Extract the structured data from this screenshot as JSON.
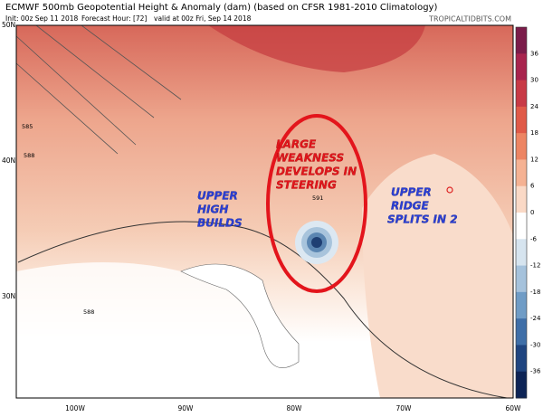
{
  "header": {
    "title": "ECMWF 500mb Geopotential Height & Anomaly (dam) (based on CFSR 1981-2010 Climatology)",
    "init": "Init: 00z Sep 11 2018",
    "forecast_hour": "Forecast Hour: [72]",
    "valid": "valid at 00z Fri, Sep 14 2018",
    "site": "TROPICALTIDBITS.COM"
  },
  "map": {
    "lat_labels": [
      "50N",
      "40N",
      "30N"
    ],
    "lon_labels": [
      "100W",
      "90W",
      "80W",
      "70W",
      "60W"
    ],
    "contour_labels": [
      "585",
      "588",
      "591",
      "588"
    ]
  },
  "annotations": [
    {
      "lines": [
        "LARGE",
        "WEAKNESS",
        "DEVELOPS IN",
        "STEERING"
      ]
    },
    {
      "lines": [
        "UPPER",
        "HIGH",
        "BUILDS"
      ]
    },
    {
      "lines": [
        "UPPER",
        "RIDGE",
        "SPLITS IN 2"
      ]
    }
  ],
  "colorbar": {
    "ticks": [
      36,
      30,
      24,
      18,
      12,
      6,
      0,
      -6,
      -12,
      -18,
      -24,
      -30,
      -36
    ]
  }
}
